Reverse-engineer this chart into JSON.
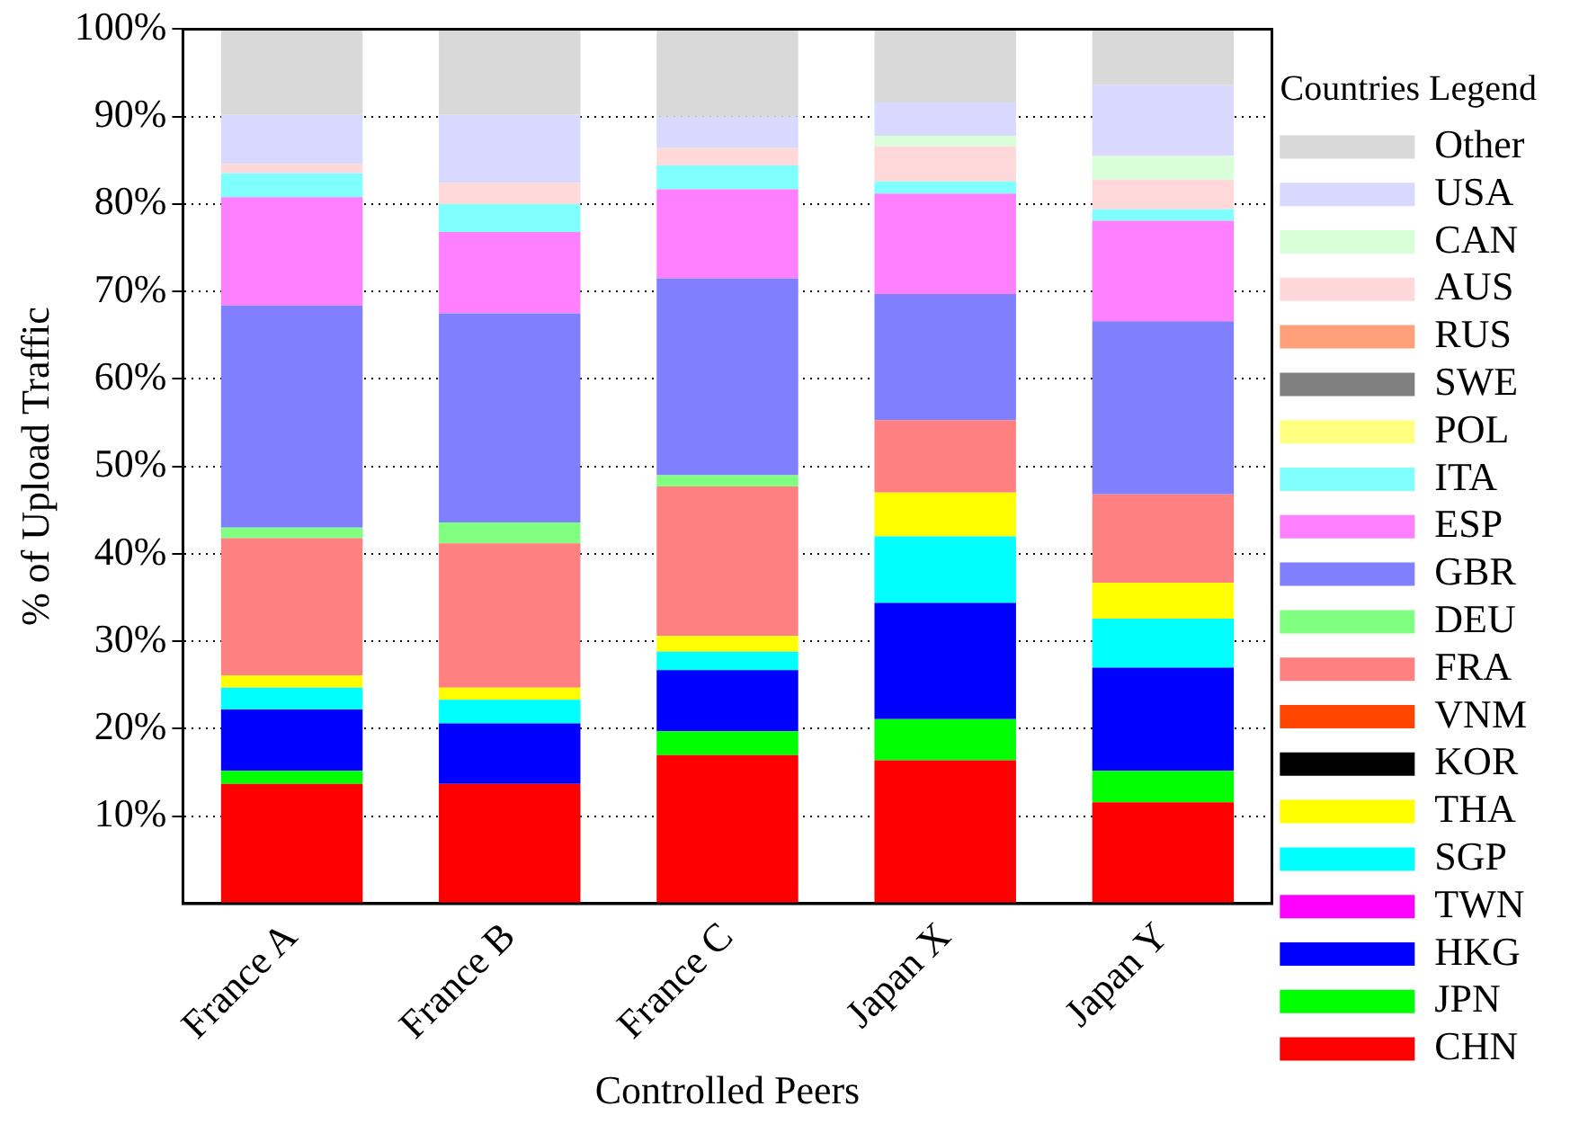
{
  "chart_data": {
    "type": "bar",
    "stacked": true,
    "xlabel": "Controlled Peers",
    "ylabel": "% of Upload Traffic",
    "legend_title": "Countries Legend",
    "legend": "right",
    "grid": "y",
    "categories": [
      "France A",
      "France B",
      "France C",
      "Japan X",
      "Japan Y"
    ],
    "ylim": [
      0,
      100
    ],
    "yticks": [
      {
        "value": 10,
        "label": "10%"
      },
      {
        "value": 20,
        "label": "20%"
      },
      {
        "value": 30,
        "label": "30%"
      },
      {
        "value": 40,
        "label": "40%"
      },
      {
        "value": 50,
        "label": "50%"
      },
      {
        "value": 60,
        "label": "60%"
      },
      {
        "value": 70,
        "label": "70%"
      },
      {
        "value": 80,
        "label": "80%"
      },
      {
        "value": 90,
        "label": "90%"
      },
      {
        "value": 100,
        "label": "100%"
      }
    ],
    "series": [
      {
        "name": "CHN",
        "color": "#ff0000",
        "values": [
          13.7,
          13.7,
          17.0,
          16.4,
          11.6
        ]
      },
      {
        "name": "JPN",
        "color": "#00ff00",
        "values": [
          1.5,
          0,
          2.7,
          4.7,
          3.6
        ]
      },
      {
        "name": "HKG",
        "color": "#0000ff",
        "values": [
          7.0,
          6.9,
          7.0,
          13.3,
          11.8
        ]
      },
      {
        "name": "TWN",
        "color": "#ff00ff",
        "values": [
          0,
          0,
          0,
          0,
          0
        ]
      },
      {
        "name": "SGP",
        "color": "#00ffff",
        "values": [
          2.5,
          2.7,
          2.1,
          7.6,
          5.6
        ]
      },
      {
        "name": "THA",
        "color": "#ffff00",
        "values": [
          1.4,
          1.4,
          1.8,
          5.0,
          4.1
        ]
      },
      {
        "name": "KOR",
        "color": "#000000",
        "values": [
          0,
          0,
          0,
          0,
          0
        ]
      },
      {
        "name": "VNM",
        "color": "#ff4500",
        "values": [
          0,
          0,
          0,
          0,
          0
        ]
      },
      {
        "name": "FRA",
        "color": "#ff8080",
        "values": [
          15.7,
          16.5,
          17.1,
          8.3,
          10.1
        ]
      },
      {
        "name": "DEU",
        "color": "#80ff80",
        "values": [
          1.2,
          2.4,
          1.3,
          0,
          0
        ]
      },
      {
        "name": "GBR",
        "color": "#8080ff",
        "values": [
          25.4,
          23.9,
          22.5,
          14.4,
          19.8
        ]
      },
      {
        "name": "ESP",
        "color": "#ff80ff",
        "values": [
          12.4,
          9.3,
          10.2,
          11.5,
          11.5
        ]
      },
      {
        "name": "ITA",
        "color": "#80ffff",
        "values": [
          2.7,
          3.2,
          2.7,
          1.4,
          1.3
        ]
      },
      {
        "name": "POL",
        "color": "#ffff80",
        "values": [
          0,
          0,
          0,
          0,
          0
        ]
      },
      {
        "name": "SWE",
        "color": "#808080",
        "values": [
          0,
          0,
          0,
          0,
          0
        ]
      },
      {
        "name": "RUS",
        "color": "#ffa07a",
        "values": [
          0,
          0,
          0,
          0,
          0
        ]
      },
      {
        "name": "AUS",
        "color": "#ffd9d9",
        "values": [
          1.1,
          2.4,
          2.0,
          4.0,
          3.4
        ]
      },
      {
        "name": "CAN",
        "color": "#d9ffd9",
        "values": [
          0,
          0,
          0,
          1.2,
          2.7
        ]
      },
      {
        "name": "USA",
        "color": "#d9d9ff",
        "values": [
          5.6,
          7.8,
          3.6,
          3.8,
          8.1
        ]
      },
      {
        "name": "Other",
        "color": "#d9d9d9",
        "values": [
          9.8,
          9.8,
          10.0,
          8.4,
          6.4
        ]
      }
    ]
  }
}
